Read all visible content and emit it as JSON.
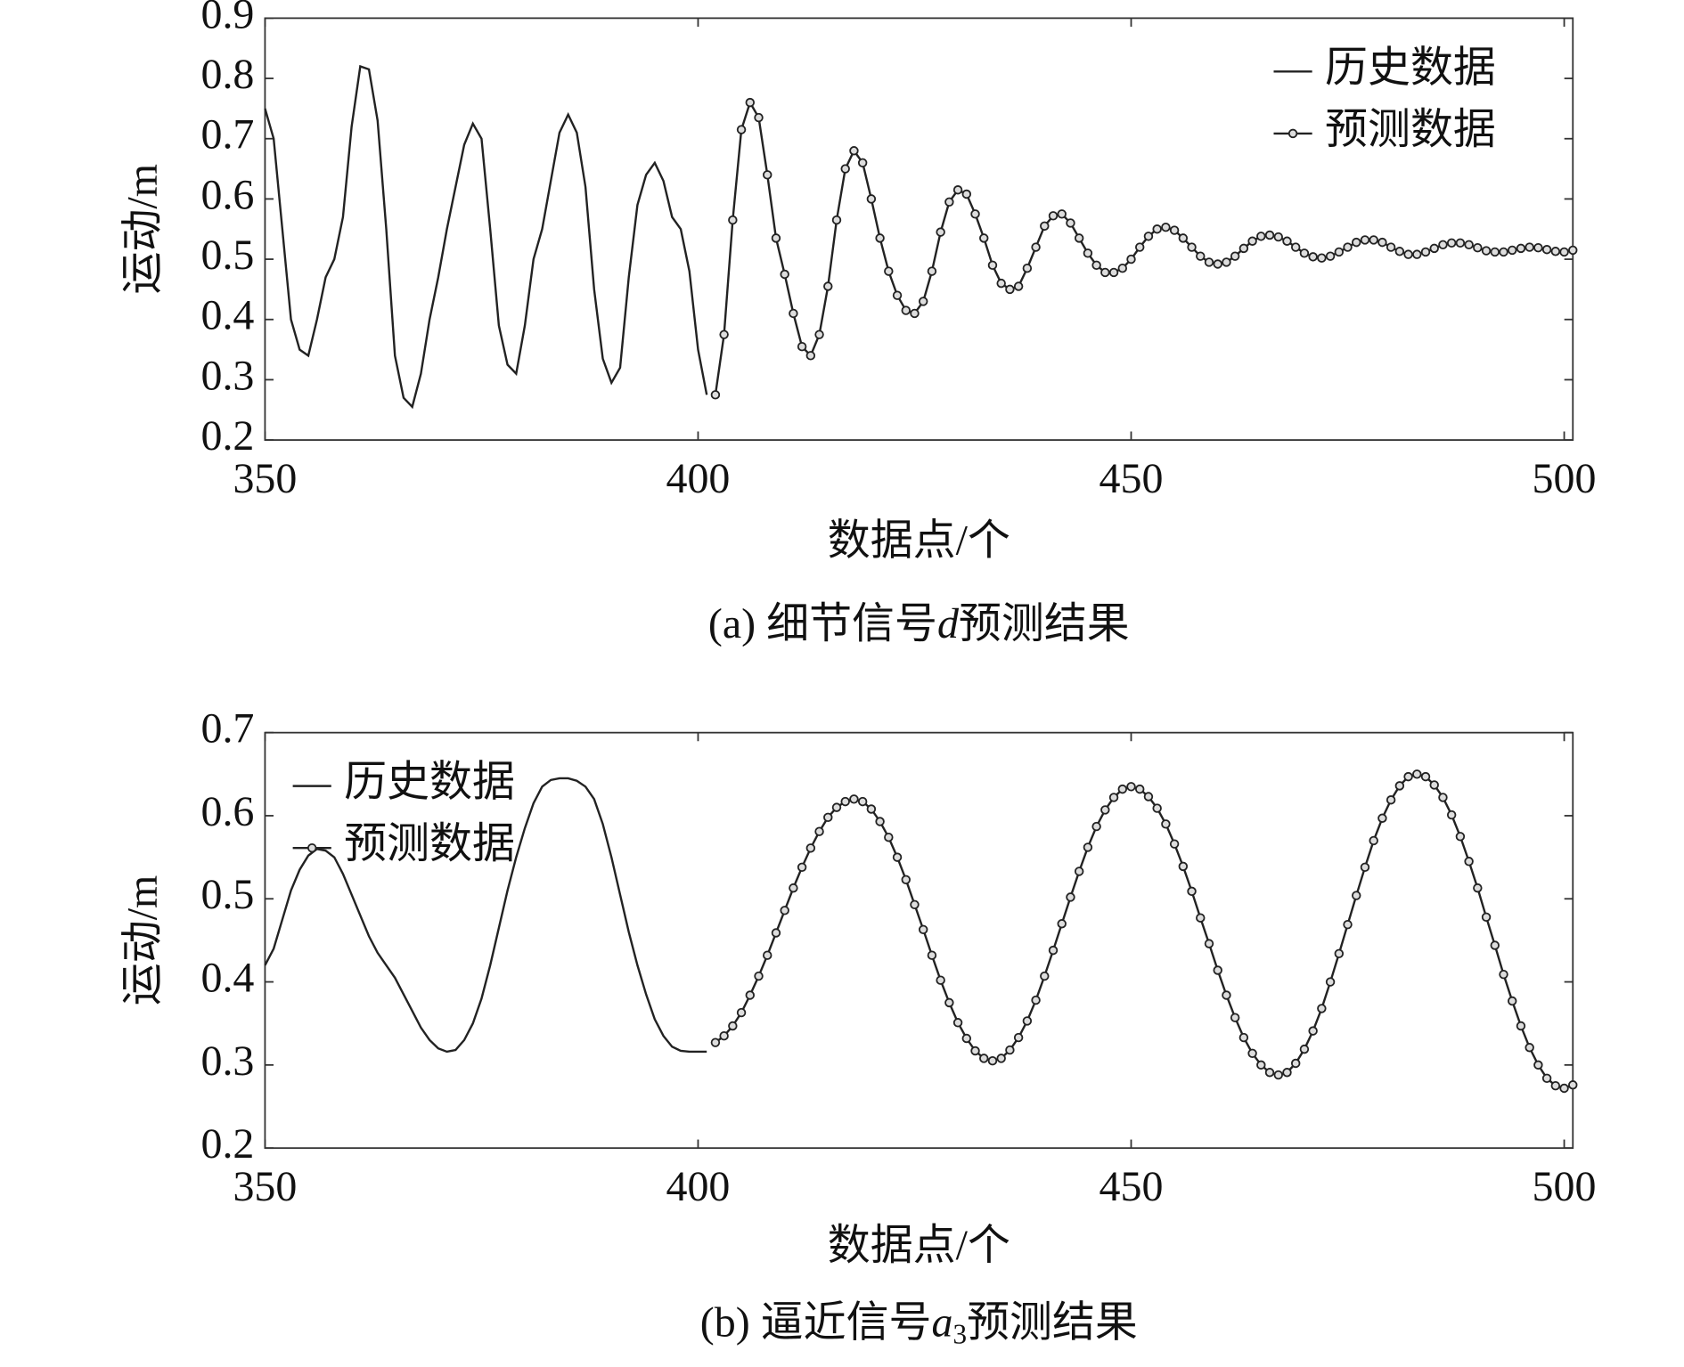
{
  "chart_data": [
    {
      "type": "line",
      "ylabel": "运动/m",
      "xlabel": "数据点/个",
      "caption": {
        "prefix": "(a) 细节信号",
        "var": "d",
        "suffix": "预测结果"
      },
      "xlim": [
        350,
        501
      ],
      "xticks": [
        350,
        400,
        450,
        500
      ],
      "ylim": [
        0.2,
        0.9
      ],
      "yticks": [
        0.2,
        0.3,
        0.4,
        0.5,
        0.6,
        0.7,
        0.8,
        0.9
      ],
      "legend": "upper right",
      "series": [
        {
          "name": "历史数据",
          "color": "#222222",
          "marker": false,
          "x": [
            350,
            351,
            352,
            353,
            354,
            355,
            356,
            357,
            358,
            359,
            360,
            361,
            362,
            363,
            364,
            365,
            366,
            367,
            368,
            369,
            370,
            371,
            372,
            373,
            374,
            375,
            376,
            377,
            378,
            379,
            380,
            381,
            382,
            383,
            384,
            385,
            386,
            387,
            388,
            389,
            390,
            391,
            392,
            393,
            394,
            395,
            396,
            397,
            398,
            399,
            400,
            401
          ],
          "values": [
            0.75,
            0.7,
            0.55,
            0.4,
            0.35,
            0.34,
            0.4,
            0.47,
            0.5,
            0.57,
            0.72,
            0.82,
            0.815,
            0.73,
            0.55,
            0.34,
            0.27,
            0.255,
            0.31,
            0.4,
            0.47,
            0.55,
            0.62,
            0.69,
            0.725,
            0.7,
            0.55,
            0.39,
            0.325,
            0.31,
            0.39,
            0.5,
            0.55,
            0.63,
            0.71,
            0.74,
            0.71,
            0.62,
            0.45,
            0.335,
            0.295,
            0.32,
            0.47,
            0.59,
            0.64,
            0.66,
            0.63,
            0.57,
            0.55,
            0.48,
            0.35,
            0.275
          ]
        },
        {
          "name": "预测数据",
          "color": "#222222",
          "marker": true,
          "x": [
            402,
            403,
            404,
            405,
            406,
            407,
            408,
            409,
            410,
            411,
            412,
            413,
            414,
            415,
            416,
            417,
            418,
            419,
            420,
            421,
            422,
            423,
            424,
            425,
            426,
            427,
            428,
            429,
            430,
            431,
            432,
            433,
            434,
            435,
            436,
            437,
            438,
            439,
            440,
            441,
            442,
            443,
            444,
            445,
            446,
            447,
            448,
            449,
            450,
            451,
            452,
            453,
            454,
            455,
            456,
            457,
            458,
            459,
            460,
            461,
            462,
            463,
            464,
            465,
            466,
            467,
            468,
            469,
            470,
            471,
            472,
            473,
            474,
            475,
            476,
            477,
            478,
            479,
            480,
            481,
            482,
            483,
            484,
            485,
            486,
            487,
            488,
            489,
            490,
            491,
            492,
            493,
            494,
            495,
            496,
            497,
            498,
            499,
            500,
            501
          ],
          "values": [
            0.275,
            0.375,
            0.565,
            0.715,
            0.76,
            0.735,
            0.64,
            0.535,
            0.475,
            0.41,
            0.355,
            0.34,
            0.375,
            0.455,
            0.565,
            0.65,
            0.68,
            0.66,
            0.6,
            0.535,
            0.48,
            0.44,
            0.415,
            0.41,
            0.43,
            0.48,
            0.545,
            0.595,
            0.615,
            0.608,
            0.575,
            0.535,
            0.49,
            0.46,
            0.45,
            0.455,
            0.485,
            0.52,
            0.555,
            0.572,
            0.575,
            0.56,
            0.535,
            0.51,
            0.49,
            0.478,
            0.478,
            0.485,
            0.5,
            0.52,
            0.538,
            0.55,
            0.553,
            0.548,
            0.535,
            0.52,
            0.505,
            0.495,
            0.492,
            0.495,
            0.505,
            0.518,
            0.53,
            0.538,
            0.54,
            0.537,
            0.53,
            0.52,
            0.51,
            0.504,
            0.502,
            0.505,
            0.512,
            0.52,
            0.528,
            0.532,
            0.532,
            0.528,
            0.52,
            0.513,
            0.508,
            0.508,
            0.512,
            0.518,
            0.524,
            0.527,
            0.527,
            0.524,
            0.519,
            0.514,
            0.512,
            0.512,
            0.515,
            0.518,
            0.52,
            0.519,
            0.516,
            0.513,
            0.512,
            0.515
          ]
        }
      ]
    },
    {
      "type": "line",
      "ylabel": "运动/m",
      "xlabel": "数据点/个",
      "caption": {
        "prefix": "(b) 逼近信号",
        "var": "a",
        "sub": "3",
        "suffix": "预测结果"
      },
      "xlim": [
        350,
        501
      ],
      "xticks": [
        350,
        400,
        450,
        500
      ],
      "ylim": [
        0.2,
        0.7
      ],
      "yticks": [
        0.2,
        0.3,
        0.4,
        0.5,
        0.6,
        0.7
      ],
      "legend": "upper left",
      "series": [
        {
          "name": "历史数据",
          "color": "#222222",
          "marker": false,
          "x": [
            350,
            351,
            352,
            353,
            354,
            355,
            356,
            357,
            358,
            359,
            360,
            361,
            362,
            363,
            364,
            365,
            366,
            367,
            368,
            369,
            370,
            371,
            372,
            373,
            374,
            375,
            376,
            377,
            378,
            379,
            380,
            381,
            382,
            383,
            384,
            385,
            386,
            387,
            388,
            389,
            390,
            391,
            392,
            393,
            394,
            395,
            396,
            397,
            398,
            399,
            400,
            401
          ],
          "values": [
            0.42,
            0.44,
            0.475,
            0.51,
            0.535,
            0.552,
            0.56,
            0.558,
            0.55,
            0.53,
            0.505,
            0.48,
            0.455,
            0.435,
            0.42,
            0.405,
            0.385,
            0.365,
            0.345,
            0.33,
            0.32,
            0.316,
            0.318,
            0.33,
            0.35,
            0.38,
            0.42,
            0.465,
            0.51,
            0.55,
            0.585,
            0.615,
            0.635,
            0.643,
            0.645,
            0.645,
            0.642,
            0.635,
            0.62,
            0.59,
            0.55,
            0.505,
            0.46,
            0.42,
            0.385,
            0.355,
            0.335,
            0.322,
            0.317,
            0.316,
            0.316,
            0.316
          ]
        },
        {
          "name": "预测数据",
          "color": "#222222",
          "marker": true,
          "x": [
            402,
            403,
            404,
            405,
            406,
            407,
            408,
            409,
            410,
            411,
            412,
            413,
            414,
            415,
            416,
            417,
            418,
            419,
            420,
            421,
            422,
            423,
            424,
            425,
            426,
            427,
            428,
            429,
            430,
            431,
            432,
            433,
            434,
            435,
            436,
            437,
            438,
            439,
            440,
            441,
            442,
            443,
            444,
            445,
            446,
            447,
            448,
            449,
            450,
            451,
            452,
            453,
            454,
            455,
            456,
            457,
            458,
            459,
            460,
            461,
            462,
            463,
            464,
            465,
            466,
            467,
            468,
            469,
            470,
            471,
            472,
            473,
            474,
            475,
            476,
            477,
            478,
            479,
            480,
            481,
            482,
            483,
            484,
            485,
            486,
            487,
            488,
            489,
            490,
            491,
            492,
            493,
            494,
            495,
            496,
            497,
            498,
            499,
            500,
            501
          ],
          "values": [
            0.327,
            0.335,
            0.347,
            0.363,
            0.384,
            0.407,
            0.432,
            0.459,
            0.486,
            0.513,
            0.538,
            0.561,
            0.581,
            0.598,
            0.61,
            0.617,
            0.62,
            0.617,
            0.608,
            0.593,
            0.574,
            0.55,
            0.523,
            0.493,
            0.463,
            0.432,
            0.402,
            0.375,
            0.351,
            0.332,
            0.317,
            0.308,
            0.305,
            0.308,
            0.318,
            0.333,
            0.353,
            0.378,
            0.407,
            0.438,
            0.47,
            0.502,
            0.533,
            0.562,
            0.587,
            0.607,
            0.622,
            0.632,
            0.635,
            0.632,
            0.623,
            0.609,
            0.59,
            0.566,
            0.539,
            0.509,
            0.477,
            0.446,
            0.414,
            0.384,
            0.357,
            0.333,
            0.314,
            0.3,
            0.291,
            0.288,
            0.291,
            0.302,
            0.319,
            0.341,
            0.368,
            0.4,
            0.434,
            0.469,
            0.504,
            0.538,
            0.57,
            0.597,
            0.619,
            0.636,
            0.647,
            0.65,
            0.647,
            0.637,
            0.622,
            0.601,
            0.575,
            0.545,
            0.513,
            0.478,
            0.444,
            0.409,
            0.377,
            0.347,
            0.321,
            0.3,
            0.284,
            0.275,
            0.272,
            0.276
          ]
        }
      ]
    }
  ]
}
